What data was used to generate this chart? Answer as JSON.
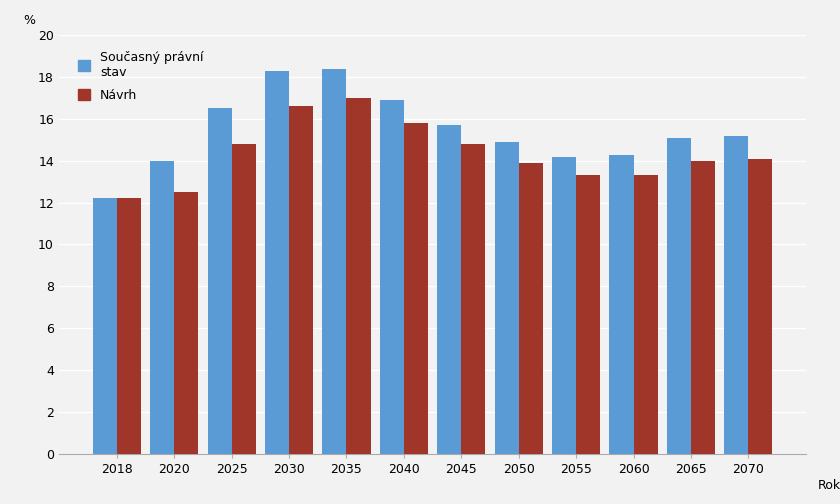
{
  "categories": [
    2018,
    2020,
    2025,
    2030,
    2035,
    2040,
    2045,
    2050,
    2055,
    2060,
    2065,
    2070
  ],
  "series1_label": "Současný právní\nstav",
  "series2_label": "Návrh",
  "series1_values": [
    12.2,
    14.0,
    16.5,
    18.3,
    18.4,
    16.9,
    15.7,
    14.9,
    14.2,
    14.3,
    15.1,
    15.2
  ],
  "series2_values": [
    12.2,
    12.5,
    14.8,
    16.6,
    17.0,
    15.8,
    14.8,
    13.9,
    13.3,
    13.3,
    14.0,
    14.1
  ],
  "color1": "#5B9BD5",
  "color2": "#A0352A",
  "ylabel": "%",
  "xlabel": "Rok",
  "ylim": [
    0,
    20
  ],
  "yticks": [
    0,
    2,
    4,
    6,
    8,
    10,
    12,
    14,
    16,
    18,
    20
  ],
  "bar_width": 0.42,
  "background_color": "#F2F2F2",
  "plot_bg_color": "#F2F2F2",
  "grid_color": "#FFFFFF",
  "legend_fontsize": 9,
  "tick_fontsize": 9,
  "axis_label_fontsize": 9
}
